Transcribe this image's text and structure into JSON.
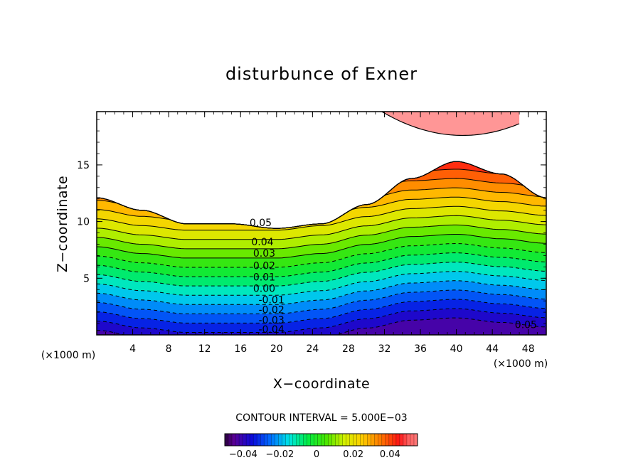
{
  "chart_data": {
    "type": "filled-contour",
    "title": "disturbunce of Exner",
    "xlabel": "X−coordinate",
    "ylabel": "Z−coordinate",
    "x_unit_left": "(×1000 m)",
    "x_unit_right": "(×1000 m)",
    "xlim": [
      0,
      50
    ],
    "ylim": [
      0,
      19.7
    ],
    "xticks": [
      4,
      8,
      12,
      16,
      20,
      24,
      28,
      32,
      36,
      40,
      44,
      48
    ],
    "xtick_labels": [
      "4",
      "8",
      "12",
      "16",
      "20",
      "24",
      "28",
      "32",
      "36",
      "40",
      "44",
      "48"
    ],
    "yticks": [
      5,
      10,
      15
    ],
    "ytick_labels": [
      "5",
      "10",
      "15"
    ],
    "contour_interval_text": "CONTOUR INTERVAL = 5.000E−03",
    "contour_interval": 0.005,
    "value_range": [
      -0.045,
      0.06
    ],
    "lowest_level_height": 0.4,
    "level_spacing": 0.82,
    "terrain_profile": {
      "x": [
        0,
        5,
        10,
        15,
        20,
        25,
        30,
        35,
        40,
        45,
        50
      ],
      "dz": [
        0.0,
        -0.6,
        -1.0,
        -1.0,
        -1.0,
        -0.6,
        0.2,
        0.9,
        1.1,
        0.7,
        0.3
      ]
    },
    "upper_region": {
      "outline_height": [
        12.1,
        11.0,
        9.8,
        9.8,
        9.4,
        9.8,
        11.5,
        13.8,
        15.3,
        14.2,
        12.1
      ],
      "fill_value": 0.06
    },
    "top_blob": {
      "x_range": [
        27.0,
        47.0
      ],
      "x_center": 40.7,
      "bottom_height": 17.6
    },
    "contour_labels": [
      {
        "text": "0.05",
        "x": 17.0,
        "y": 9.6
      },
      {
        "text": "0.04",
        "x": 17.2,
        "y": 7.9
      },
      {
        "text": "0.03",
        "x": 17.4,
        "y": 6.9
      },
      {
        "text": "0.02",
        "x": 17.4,
        "y": 5.8
      },
      {
        "text": "0.01",
        "x": 17.4,
        "y": 4.8
      },
      {
        "text": "0.00",
        "x": 17.4,
        "y": 3.8
      },
      {
        "text": "-0.01",
        "x": 18.0,
        "y": 2.8
      },
      {
        "text": "-0.02",
        "x": 18.0,
        "y": 1.9
      },
      {
        "text": "-0.03",
        "x": 18.0,
        "y": 1.0
      },
      {
        "text": "-0.04",
        "x": 18.0,
        "y": 0.2
      },
      {
        "text": "0.05",
        "x": 46.5,
        "y": 0.6
      }
    ],
    "colorbar": {
      "vmin": -0.05,
      "vmax": 0.055,
      "ticks": [
        -0.04,
        -0.02,
        0,
        0.02,
        0.04
      ],
      "tick_labels": [
        "−0.04",
        "−0.02",
        "0",
        "0.02",
        "0.04"
      ]
    },
    "grid": false,
    "legend": "colorbar-bottom"
  }
}
